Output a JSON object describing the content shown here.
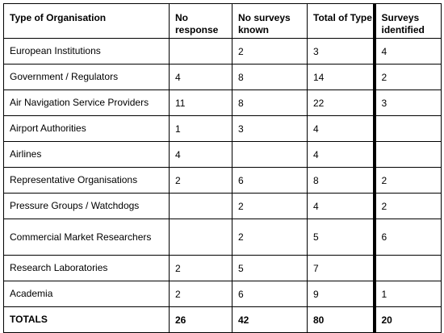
{
  "table": {
    "headers": {
      "type": "Type of Organisation",
      "no_response": "No response",
      "no_surveys_known": "No surveys known",
      "total_of_type": "Total of Type",
      "surveys_identified": "Surveys identified"
    },
    "rows": [
      {
        "type": "European Institutions",
        "no_response": "",
        "no_surveys_known": "2",
        "total_of_type": "3",
        "surveys_identified": "4"
      },
      {
        "type": "Government / Regulators",
        "no_response": "4",
        "no_surveys_known": "8",
        "total_of_type": "14",
        "surveys_identified": "2"
      },
      {
        "type": "Air Navigation Service Providers",
        "no_response": "11",
        "no_surveys_known": "8",
        "total_of_type": "22",
        "surveys_identified": "3"
      },
      {
        "type": "Airport Authorities",
        "no_response": "1",
        "no_surveys_known": "3",
        "total_of_type": "4",
        "surveys_identified": ""
      },
      {
        "type": "Airlines",
        "no_response": "4",
        "no_surveys_known": "",
        "total_of_type": "4",
        "surveys_identified": ""
      },
      {
        "type": "Representative Organisations",
        "no_response": "2",
        "no_surveys_known": "6",
        "total_of_type": "8",
        "surveys_identified": "2"
      },
      {
        "type": "Pressure Groups / Watchdogs",
        "no_response": "",
        "no_surveys_known": "2",
        "total_of_type": "4",
        "surveys_identified": "2"
      },
      {
        "type": "Commercial Market Researchers",
        "no_response": "",
        "no_surveys_known": "2",
        "total_of_type": "5",
        "surveys_identified": "6"
      },
      {
        "type": "Research Laboratories",
        "no_response": "2",
        "no_surveys_known": "5",
        "total_of_type": "7",
        "surveys_identified": ""
      },
      {
        "type": "Academia",
        "no_response": "2",
        "no_surveys_known": "6",
        "total_of_type": "9",
        "surveys_identified": "1"
      }
    ],
    "totals": {
      "label": "TOTALS",
      "no_response": "26",
      "no_surveys_known": "42",
      "total_of_type": "80",
      "surveys_identified": "20"
    }
  }
}
